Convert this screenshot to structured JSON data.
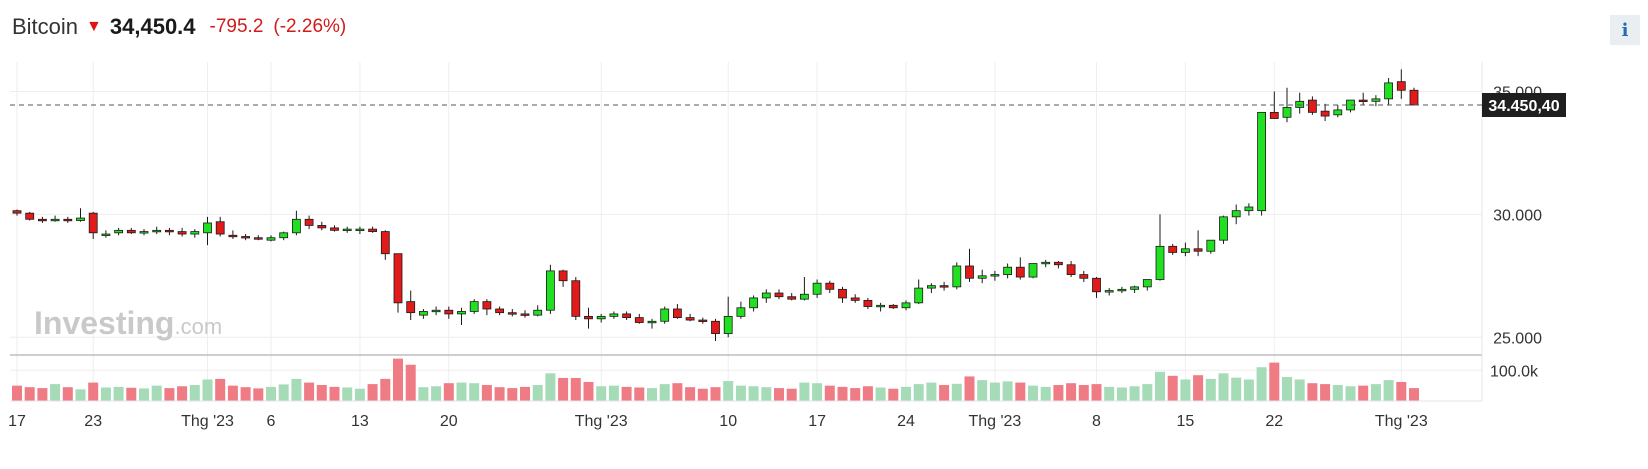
{
  "header": {
    "name": "Bitcoin",
    "arrow": "▼",
    "price": "34,450.4",
    "change": "-795.2",
    "change_pct": "(-2.26%)"
  },
  "info_button": {
    "label": "i"
  },
  "watermark": {
    "brand": "Investing",
    "suffix": ".com"
  },
  "colors": {
    "up": "#21e021",
    "down": "#e11a1a",
    "vol_up": "#a6dbb8",
    "vol_down": "#ef7b85",
    "grid": "#eeeeee"
  },
  "chart_data": {
    "type": "candlestick",
    "current_price": 34450.4,
    "current_price_label": "34.450,40",
    "ylim": [
      24400,
      36200
    ],
    "y_ticks": [
      25000,
      30000,
      35000
    ],
    "y_tick_labels": [
      "25.000",
      "30.000",
      "35.000"
    ],
    "volume_ticks": [
      100000
    ],
    "volume_tick_labels": [
      "100.0k"
    ],
    "volume_max": 140000,
    "x_tick_labels": [
      {
        "label": "17",
        "index": 0
      },
      {
        "label": "23",
        "index": 6
      },
      {
        "label": "Thg '23",
        "index": 15
      },
      {
        "label": "6",
        "index": 20
      },
      {
        "label": "13",
        "index": 27
      },
      {
        "label": "20",
        "index": 34
      },
      {
        "label": "Thg '23",
        "index": 46
      },
      {
        "label": "10",
        "index": 56
      },
      {
        "label": "17",
        "index": 63
      },
      {
        "label": "24",
        "index": 70
      },
      {
        "label": "Thg '23",
        "index": 77
      },
      {
        "label": "8",
        "index": 85
      },
      {
        "label": "15",
        "index": 92
      },
      {
        "label": "22",
        "index": 99
      },
      {
        "label": "Thg '23",
        "index": 109
      }
    ],
    "candles": [
      [
        30150,
        30200,
        29950,
        30050,
        50000
      ],
      [
        30050,
        30100,
        29750,
        29800,
        45000
      ],
      [
        29800,
        29900,
        29650,
        29750,
        42000
      ],
      [
        29750,
        29950,
        29700,
        29800,
        55000
      ],
      [
        29800,
        29900,
        29650,
        29750,
        45000
      ],
      [
        29750,
        30250,
        29700,
        29850,
        38000
      ],
      [
        30050,
        30100,
        29000,
        29250,
        60000
      ],
      [
        29150,
        29350,
        29050,
        29200,
        44000
      ],
      [
        29250,
        29450,
        29150,
        29350,
        46000
      ],
      [
        29350,
        29450,
        29200,
        29250,
        43000
      ],
      [
        29250,
        29400,
        29150,
        29300,
        41000
      ],
      [
        29300,
        29500,
        29200,
        29350,
        50000
      ],
      [
        29350,
        29450,
        29150,
        29300,
        42000
      ],
      [
        29300,
        29450,
        29100,
        29200,
        48000
      ],
      [
        29200,
        29400,
        29050,
        29300,
        52000
      ],
      [
        29250,
        29900,
        28750,
        29650,
        70000
      ],
      [
        29700,
        29900,
        29100,
        29200,
        72000
      ],
      [
        29150,
        29350,
        29000,
        29100,
        50000
      ],
      [
        29100,
        29200,
        28950,
        29050,
        45000
      ],
      [
        29050,
        29150,
        28950,
        29000,
        41000
      ],
      [
        28950,
        29150,
        28900,
        29050,
        46000
      ],
      [
        29050,
        29300,
        28950,
        29250,
        54000
      ],
      [
        29250,
        30150,
        29150,
        29800,
        72000
      ],
      [
        29800,
        29950,
        29400,
        29550,
        60000
      ],
      [
        29550,
        29700,
        29350,
        29450,
        52000
      ],
      [
        29450,
        29550,
        29300,
        29350,
        46000
      ],
      [
        29350,
        29500,
        29250,
        29400,
        44000
      ],
      [
        29350,
        29500,
        29200,
        29400,
        40000
      ],
      [
        29400,
        29500,
        29250,
        29300,
        55000
      ],
      [
        29300,
        29350,
        28150,
        28400,
        72000
      ],
      [
        28400,
        28400,
        26000,
        26400,
        138000
      ],
      [
        26450,
        26900,
        25700,
        26000,
        118000
      ],
      [
        25900,
        26150,
        25750,
        26050,
        45000
      ],
      [
        26050,
        26250,
        25900,
        26100,
        48000
      ],
      [
        26100,
        26250,
        25750,
        25950,
        58000
      ],
      [
        25950,
        26200,
        25500,
        26050,
        60000
      ],
      [
        26050,
        26550,
        25950,
        26450,
        58000
      ],
      [
        26450,
        26550,
        25900,
        26150,
        52000
      ],
      [
        26150,
        26250,
        25900,
        26000,
        45000
      ],
      [
        26000,
        26150,
        25850,
        25950,
        42000
      ],
      [
        25950,
        26100,
        25800,
        25900,
        46000
      ],
      [
        25900,
        26300,
        25850,
        26100,
        52000
      ],
      [
        26100,
        27950,
        25950,
        27700,
        90000
      ],
      [
        27700,
        27750,
        27050,
        27300,
        75000
      ],
      [
        27300,
        27450,
        25700,
        25850,
        75000
      ],
      [
        25850,
        26200,
        25350,
        25750,
        62000
      ],
      [
        25750,
        25950,
        25600,
        25850,
        48000
      ],
      [
        25850,
        26050,
        25750,
        25950,
        50000
      ],
      [
        25950,
        26050,
        25700,
        25800,
        46000
      ],
      [
        25800,
        25950,
        25550,
        25600,
        44000
      ],
      [
        25600,
        25750,
        25350,
        25650,
        42000
      ],
      [
        25650,
        26250,
        25550,
        26150,
        55000
      ],
      [
        26150,
        26350,
        25750,
        25800,
        58000
      ],
      [
        25800,
        25950,
        25650,
        25700,
        45000
      ],
      [
        25700,
        25800,
        25550,
        25650,
        40000
      ],
      [
        25650,
        25750,
        24850,
        25150,
        45000
      ],
      [
        25150,
        26650,
        25000,
        25850,
        65000
      ],
      [
        25850,
        26450,
        25750,
        26200,
        50000
      ],
      [
        26200,
        26700,
        26050,
        26600,
        48000
      ],
      [
        26600,
        26950,
        26400,
        26800,
        45000
      ],
      [
        26800,
        26950,
        26550,
        26650,
        42000
      ],
      [
        26650,
        26800,
        26500,
        26550,
        40000
      ],
      [
        26550,
        27450,
        26500,
        26750,
        60000
      ],
      [
        26750,
        27350,
        26600,
        27200,
        58000
      ],
      [
        27200,
        27300,
        26800,
        26950,
        50000
      ],
      [
        26950,
        27050,
        26400,
        26600,
        46000
      ],
      [
        26600,
        26750,
        26400,
        26500,
        42000
      ],
      [
        26500,
        26600,
        26150,
        26250,
        48000
      ],
      [
        26250,
        26400,
        26050,
        26300,
        44000
      ],
      [
        26300,
        26350,
        26150,
        26200,
        40000
      ],
      [
        26200,
        26500,
        26100,
        26400,
        46000
      ],
      [
        26400,
        27350,
        26350,
        27000,
        55000
      ],
      [
        27000,
        27200,
        26800,
        27100,
        60000
      ],
      [
        27100,
        27250,
        26900,
        27050,
        52000
      ],
      [
        27050,
        28050,
        26950,
        27900,
        56000
      ],
      [
        27900,
        28600,
        27250,
        27400,
        80000
      ],
      [
        27400,
        27750,
        27200,
        27500,
        68000
      ],
      [
        27500,
        27700,
        27300,
        27550,
        60000
      ],
      [
        27550,
        28000,
        27400,
        27850,
        64000
      ],
      [
        27850,
        28250,
        27350,
        27450,
        60000
      ],
      [
        27450,
        28000,
        27400,
        28000,
        50000
      ],
      [
        28000,
        28150,
        27850,
        28050,
        46000
      ],
      [
        28050,
        28100,
        27800,
        27950,
        52000
      ],
      [
        27950,
        28100,
        27450,
        27550,
        58000
      ],
      [
        27550,
        27700,
        27250,
        27400,
        52000
      ],
      [
        27400,
        27450,
        26600,
        26850,
        55000
      ],
      [
        26850,
        27000,
        26700,
        26900,
        46000
      ],
      [
        26900,
        27050,
        26800,
        26950,
        44000
      ],
      [
        26950,
        27100,
        26800,
        27050,
        48000
      ],
      [
        27050,
        27250,
        26900,
        27350,
        55000
      ],
      [
        27350,
        30000,
        27300,
        28700,
        95000
      ],
      [
        28700,
        28800,
        28350,
        28450,
        82000
      ],
      [
        28450,
        28850,
        28300,
        28600,
        70000
      ],
      [
        28600,
        29350,
        28300,
        28500,
        84000
      ],
      [
        28500,
        28950,
        28400,
        28950,
        72000
      ],
      [
        28950,
        29950,
        28800,
        29900,
        90000
      ],
      [
        29900,
        30400,
        29600,
        30150,
        76000
      ],
      [
        30150,
        30450,
        29950,
        30300,
        70000
      ],
      [
        30150,
        34150,
        29950,
        34150,
        110000
      ],
      [
        34150,
        35000,
        33900,
        33900,
        125000
      ],
      [
        33950,
        35150,
        33750,
        34350,
        78000
      ],
      [
        34350,
        34950,
        34100,
        34600,
        70000
      ],
      [
        34650,
        34800,
        34050,
        34150,
        58000
      ],
      [
        34200,
        34500,
        33800,
        34000,
        55000
      ],
      [
        34050,
        34450,
        33950,
        34250,
        52000
      ],
      [
        34250,
        34650,
        34150,
        34650,
        48000
      ],
      [
        34650,
        34950,
        34450,
        34600,
        50000
      ],
      [
        34600,
        34850,
        34400,
        34700,
        55000
      ],
      [
        34700,
        35550,
        34450,
        35350,
        68000
      ],
      [
        35400,
        35900,
        34700,
        35050,
        62000
      ],
      [
        35050,
        35150,
        34500,
        34450,
        42000
      ]
    ]
  }
}
